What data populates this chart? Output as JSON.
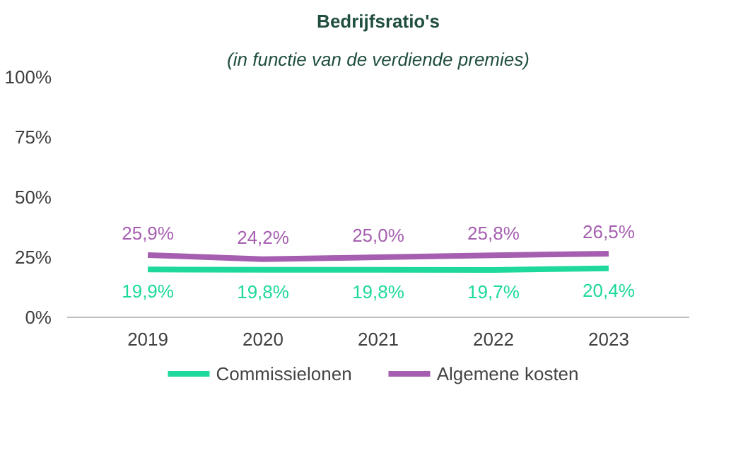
{
  "chart_data": {
    "type": "line",
    "title": "Bedrijfsratio's",
    "subtitle": "(in functie van de verdiende premies)",
    "categories": [
      "2019",
      "2020",
      "2021",
      "2022",
      "2023"
    ],
    "series": [
      {
        "name": "Commissielonen",
        "color": "#1ed99b",
        "values": [
          19.9,
          19.8,
          19.8,
          19.7,
          20.4
        ],
        "value_labels": [
          "19,9%",
          "19,8%",
          "19,8%",
          "19,7%",
          "20,4%"
        ]
      },
      {
        "name": "Algemene kosten",
        "color": "#a65fb0",
        "values": [
          25.9,
          24.2,
          25.0,
          25.8,
          26.5
        ],
        "value_labels": [
          "25,9%",
          "24,2%",
          "25,0%",
          "25,8%",
          "26,5%"
        ]
      }
    ],
    "ylim": [
      0,
      100
    ],
    "yticks": [
      {
        "value": 0,
        "label": "0%"
      },
      {
        "value": 25,
        "label": "25%"
      },
      {
        "value": 50,
        "label": "50%"
      },
      {
        "value": 75,
        "label": "75%"
      },
      {
        "value": 100,
        "label": "100%"
      }
    ],
    "grid": false,
    "legend": "bottom",
    "marker": "none",
    "line_style": "solid"
  }
}
